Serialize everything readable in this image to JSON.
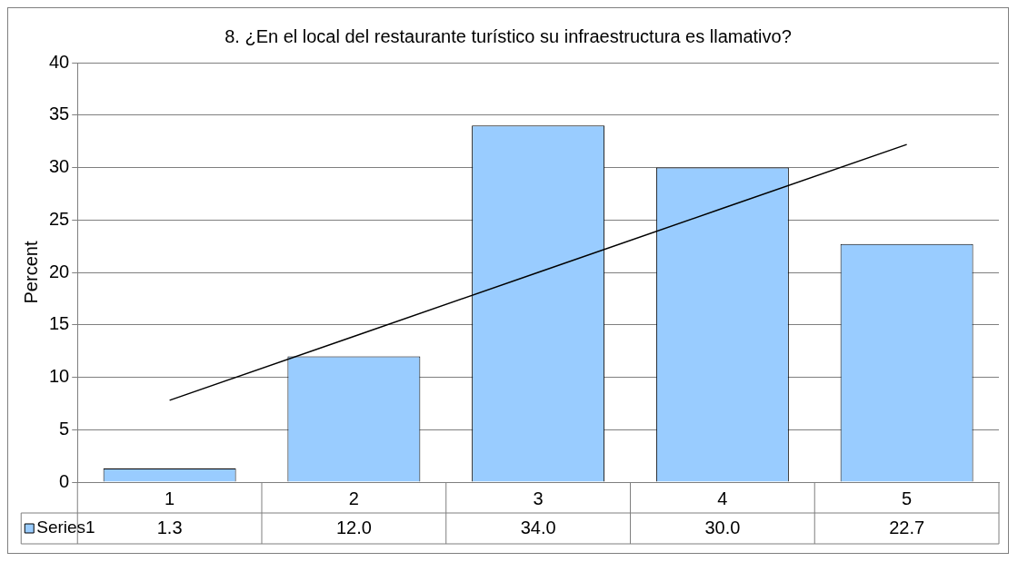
{
  "chart_data": {
    "type": "bar",
    "title": "8. ¿En el local del restaurante turístico su infraestructura es llamativo?",
    "ylabel": "Percent",
    "categories": [
      "1",
      "2",
      "3",
      "4",
      "5"
    ],
    "series": [
      {
        "name": "Series1",
        "color": "#99ccff",
        "values": [
          1.3,
          12.0,
          34.0,
          30.0,
          22.7
        ],
        "value_labels": [
          "1.3",
          "12.0",
          "34.0",
          "30.0",
          "22.7"
        ]
      },
      {
        "type": "line",
        "color": "#000000",
        "values": [
          7.8,
          13.9,
          20.0,
          26.1,
          32.2
        ]
      }
    ],
    "ylim": [
      0,
      40
    ],
    "yticks": [
      0,
      5,
      10,
      15,
      20,
      25,
      30,
      35,
      40
    ],
    "grid": "y",
    "legend": "bottom",
    "marker": "none",
    "line_style": "solid"
  }
}
